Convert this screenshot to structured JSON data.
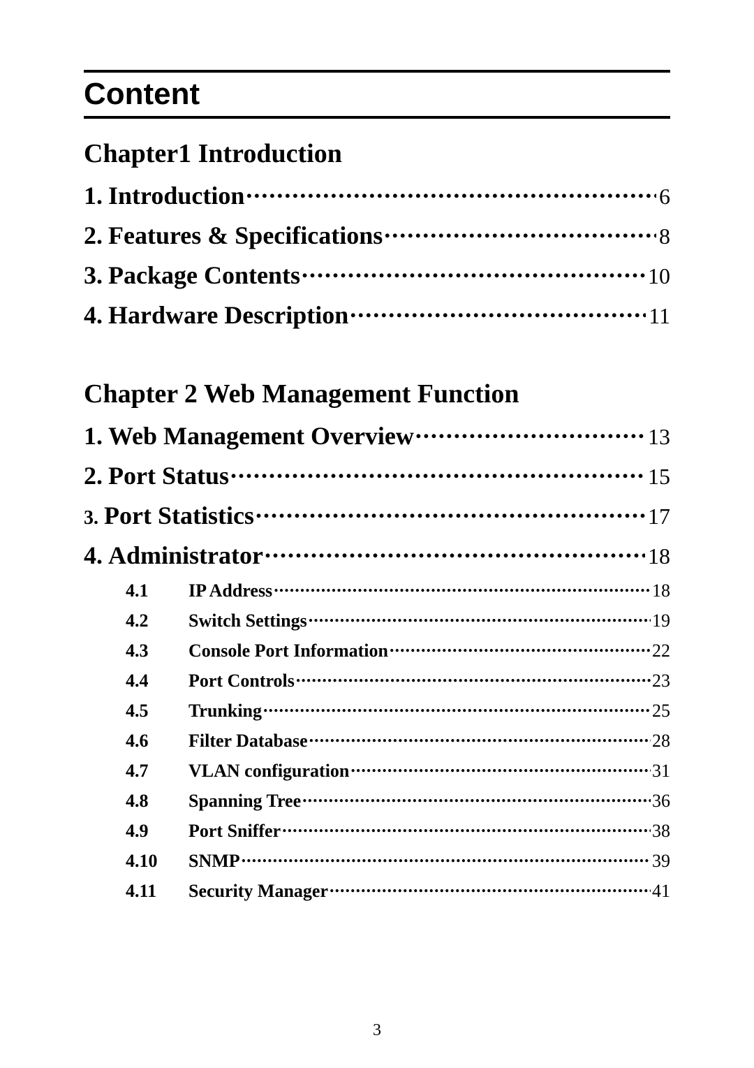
{
  "title": "Content",
  "chapter1": {
    "heading": "Chapter1 Introduction",
    "items": [
      {
        "num": "1.",
        "label": "Introduction",
        "page": "6"
      },
      {
        "num": "2.",
        "label": "Features & Specifications",
        "page": "8"
      },
      {
        "num": "3.",
        "label": "Package Contents",
        "page": "10"
      },
      {
        "num": "4.",
        "label": "Hardware Description",
        "page": "11"
      }
    ]
  },
  "chapter2": {
    "heading": "Chapter 2 Web Management Function",
    "items": [
      {
        "num": "1.",
        "label": "Web Management Overview",
        "page": "13"
      },
      {
        "num": "2.",
        "label": "Port Status",
        "page": "15"
      },
      {
        "num": "3.",
        "label": "Port Statistics",
        "page": "17",
        "small_num": true
      },
      {
        "num": "4.",
        "label": "Administrator",
        "page": "18"
      }
    ],
    "subitems": [
      {
        "num": "4.1",
        "label": "IP Address",
        "page": "18"
      },
      {
        "num": "4.2",
        "label": "Switch Settings",
        "page": "19"
      },
      {
        "num": "4.3",
        "label": "Console Port Information",
        "page": "22"
      },
      {
        "num": "4.4",
        "label": "Port Controls",
        "page": "23"
      },
      {
        "num": "4.5",
        "label": "Trunking",
        "page": "25"
      },
      {
        "num": "4.6",
        "label": "Filter Database",
        "page": "28"
      },
      {
        "num": "4.7",
        "label": "VLAN configuration",
        "page": "31"
      },
      {
        "num": "4.8",
        "label": "Spanning Tree",
        "page": "36"
      },
      {
        "num": "4.9",
        "label": "Port Sniffer",
        "page": "38"
      },
      {
        "num": "4.10",
        "label": "SNMP",
        "page": "39"
      },
      {
        "num": "4.11",
        "label": "Security Manager",
        "page": "41"
      }
    ]
  },
  "footer_page": "3"
}
